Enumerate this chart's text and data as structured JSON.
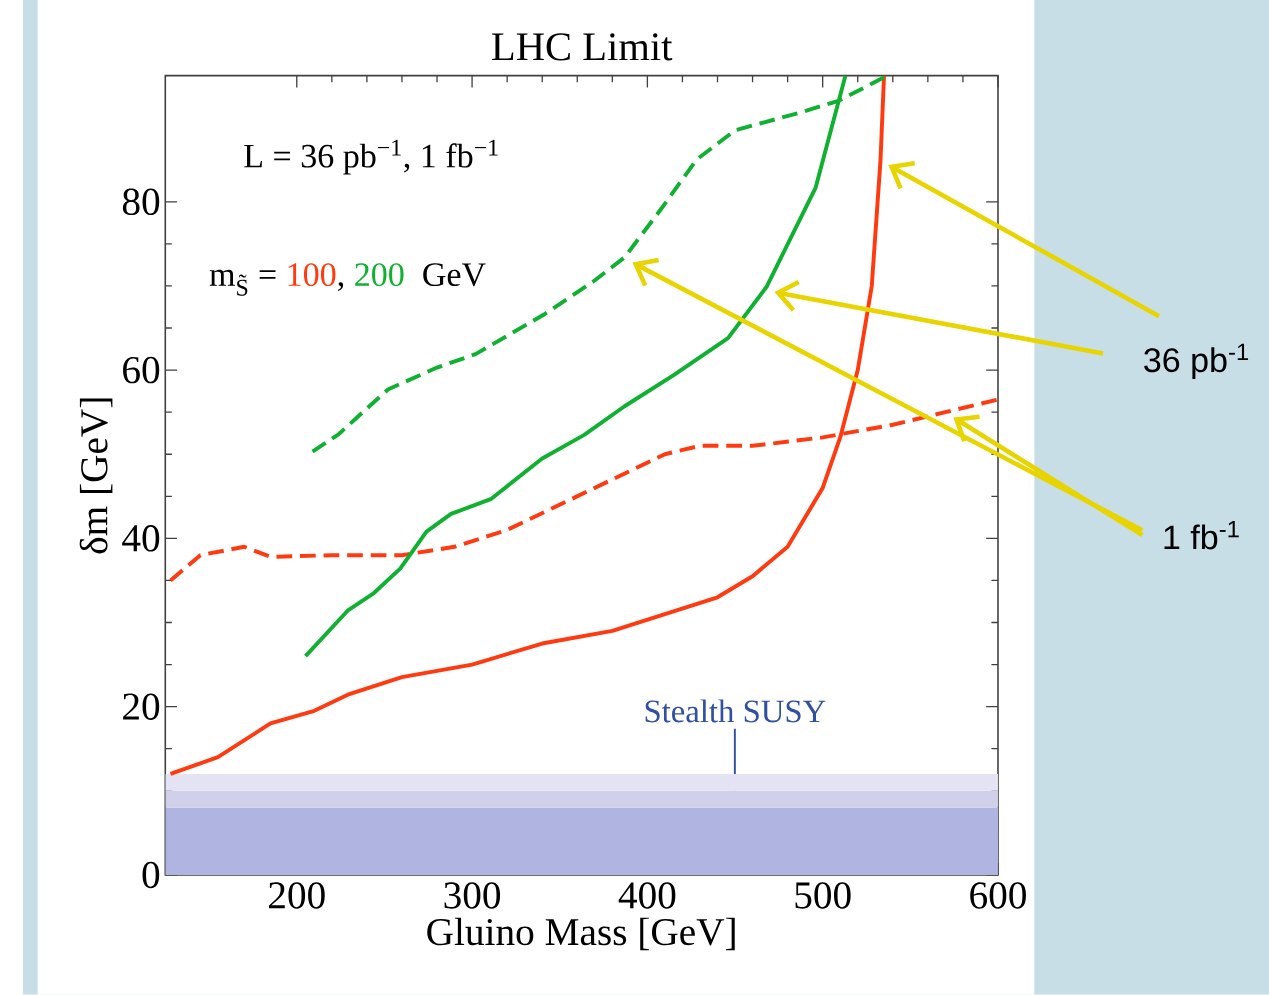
{
  "chart_data": {
    "type": "line",
    "title": "LHC Limit",
    "xlabel": "Gluino Mass  [GeV]",
    "ylabel": "δm  [GeV]",
    "xlim": [
      125,
      600
    ],
    "ylim": [
      0,
      95
    ],
    "xticks": [
      200,
      300,
      400,
      500,
      600
    ],
    "yticks": [
      0,
      20,
      40,
      60,
      80
    ],
    "series": [
      {
        "name": "100",
        "color": "#ff3a10",
        "line_style": "solid",
        "x": [
          128,
          155,
          185,
          210,
          230,
          260,
          300,
          340,
          380,
          410,
          440,
          460,
          480,
          500,
          510,
          520,
          528,
          533,
          535
        ],
        "values": [
          12,
          14,
          18,
          19.5,
          21.5,
          23.5,
          25,
          27.5,
          29,
          31,
          33,
          35.5,
          39,
          46,
          52,
          60,
          70,
          85,
          95
        ]
      },
      {
        "color": "#ff3a10",
        "line_style": "dashed",
        "x": [
          128,
          145,
          170,
          185,
          220,
          260,
          290,
          320,
          350,
          380,
          410,
          430,
          460,
          500,
          540,
          570,
          600
        ],
        "values": [
          35,
          38,
          39,
          37.8,
          38,
          38,
          39,
          41,
          44,
          47,
          50,
          51,
          51,
          52,
          53.5,
          55,
          56.5
        ]
      },
      {
        "name": "200",
        "color": "#10b030",
        "line_style": "solid",
        "x": [
          205,
          229,
          244,
          259,
          274,
          288,
          311,
          340,
          364,
          387,
          415,
          446,
          468,
          496,
          513
        ],
        "values": [
          26,
          31.4,
          33.5,
          36.4,
          40.8,
          42.9,
          44.7,
          49.5,
          52.3,
          55.7,
          59.4,
          63.8,
          69.9,
          81.7,
          95
        ]
      },
      {
        "color": "#10b030",
        "line_style": "dashed",
        "x": [
          209,
          224,
          252,
          280,
          302,
          341,
          369,
          387,
          408,
          428,
          450,
          487,
          509,
          537
        ],
        "values": [
          50.3,
          52.4,
          57.7,
          60.3,
          61.9,
          66.6,
          70.5,
          73.4,
          79.2,
          85,
          88.5,
          90.6,
          92,
          95
        ]
      }
    ],
    "bands": [
      {
        "axis": "y",
        "from": 0,
        "to": 8,
        "color": "#b0b4e0",
        "label": "Stealth SUSY"
      },
      {
        "axis": "y",
        "from": 8,
        "to": 10,
        "color": "#d0d0ea"
      },
      {
        "axis": "y",
        "from": 10,
        "to": 12,
        "color": "#e3e3f3"
      }
    ],
    "annotations": [
      "L = 36 pb$^{−1}$,  1 fb$^{−1}$",
      "m$_{S̃}$ =",
      ",",
      "GeV",
      "36 pb$^{-1}$",
      "1 fb$^{-1}$"
    ],
    "grid": false
  }
}
